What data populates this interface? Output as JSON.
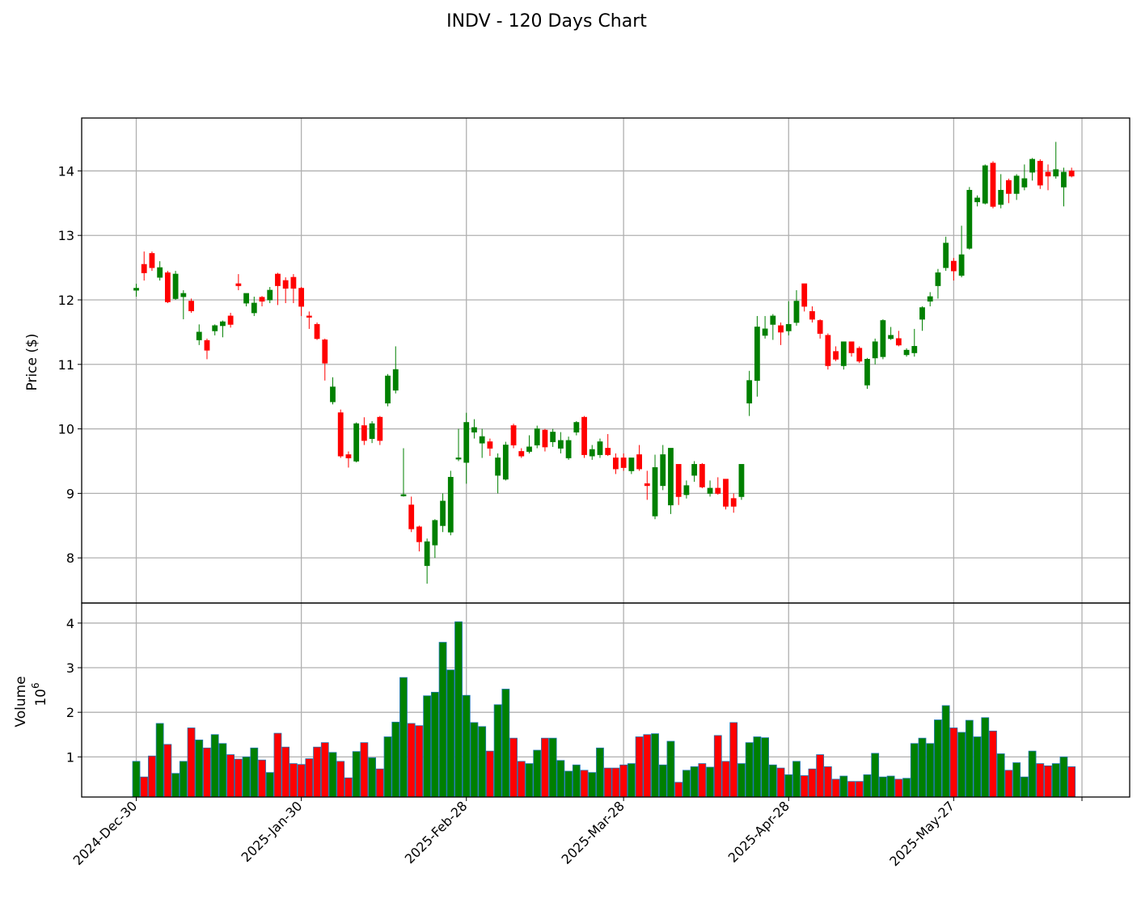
{
  "title": "INDV - 120 Days Chart",
  "colors": {
    "up": "#008000",
    "down": "#ff0000",
    "volume_edge": "#1f77b4",
    "grid": "#b0b0b0",
    "axes": "#000000"
  },
  "chart_data": [
    {
      "type": "candlestick",
      "ylabel": "Price ($)",
      "ylim": [
        7.3,
        14.82
      ],
      "yticks": [
        8,
        9,
        10,
        11,
        12,
        13,
        14
      ],
      "grid": true,
      "xtick_labels": [
        "2024-Dec-30",
        "2025-Jan-30",
        "2025-Feb-28",
        "2025-Mar-28",
        "2025-Apr-28",
        "2025-May-27"
      ],
      "xtick_indices": [
        0,
        21,
        42,
        62,
        83,
        104
      ],
      "ohlc": [
        [
          12.15,
          12.25,
          12.05,
          12.18
        ],
        [
          12.55,
          12.75,
          12.3,
          12.42
        ],
        [
          12.72,
          12.75,
          12.45,
          12.5
        ],
        [
          12.35,
          12.6,
          12.3,
          12.5
        ],
        [
          12.42,
          12.45,
          11.95,
          11.97
        ],
        [
          12.02,
          12.45,
          12.0,
          12.4
        ],
        [
          12.05,
          12.15,
          11.7,
          12.1
        ],
        [
          11.98,
          12.02,
          11.8,
          11.83
        ],
        [
          11.38,
          11.62,
          11.3,
          11.5
        ],
        [
          11.37,
          11.4,
          11.08,
          11.22
        ],
        [
          11.52,
          11.62,
          11.45,
          11.6
        ],
        [
          11.6,
          11.68,
          11.42,
          11.66
        ],
        [
          11.75,
          11.8,
          11.57,
          11.62
        ],
        [
          12.25,
          12.4,
          12.15,
          12.22
        ],
        [
          11.95,
          12.08,
          11.9,
          12.1
        ],
        [
          11.8,
          12.05,
          11.75,
          11.95
        ],
        [
          12.04,
          12.06,
          11.9,
          11.98
        ],
        [
          12.0,
          12.2,
          11.95,
          12.15
        ],
        [
          12.4,
          12.42,
          11.92,
          12.22
        ],
        [
          12.3,
          12.35,
          11.95,
          12.18
        ],
        [
          12.35,
          12.4,
          11.95,
          12.18
        ],
        [
          12.18,
          12.2,
          11.75,
          11.9
        ],
        [
          11.75,
          11.82,
          11.55,
          11.74
        ],
        [
          11.62,
          11.65,
          11.38,
          11.4
        ],
        [
          11.38,
          11.4,
          10.75,
          11.02
        ],
        [
          10.42,
          10.8,
          10.38,
          10.65
        ],
        [
          10.25,
          10.3,
          9.55,
          9.58
        ],
        [
          9.6,
          9.65,
          9.4,
          9.55
        ],
        [
          9.5,
          10.1,
          9.48,
          10.08
        ],
        [
          10.05,
          10.18,
          9.75,
          9.82
        ],
        [
          9.85,
          10.12,
          9.78,
          10.08
        ],
        [
          10.18,
          10.2,
          9.75,
          9.82
        ],
        [
          10.4,
          10.85,
          10.35,
          10.82
        ],
        [
          10.6,
          11.28,
          10.55,
          10.92
        ],
        [
          8.98,
          9.7,
          8.95,
          8.98
        ],
        [
          8.82,
          8.95,
          8.4,
          8.45
        ],
        [
          8.48,
          8.5,
          8.1,
          8.25
        ],
        [
          7.88,
          8.3,
          7.6,
          8.25
        ],
        [
          8.2,
          8.6,
          8.0,
          8.58
        ],
        [
          8.5,
          9.0,
          8.4,
          8.88
        ],
        [
          8.4,
          9.35,
          8.35,
          9.25
        ],
        [
          9.55,
          10.0,
          9.5,
          9.55
        ],
        [
          9.48,
          10.25,
          9.15,
          10.1
        ],
        [
          9.95,
          10.15,
          9.85,
          10.02
        ],
        [
          9.78,
          10.0,
          9.55,
          9.88
        ],
        [
          9.8,
          9.85,
          9.58,
          9.7
        ],
        [
          9.28,
          9.62,
          9.0,
          9.55
        ],
        [
          9.22,
          9.8,
          9.2,
          9.75
        ],
        [
          10.05,
          10.08,
          9.7,
          9.75
        ],
        [
          9.65,
          9.7,
          9.55,
          9.58
        ],
        [
          9.65,
          9.9,
          9.62,
          9.72
        ],
        [
          9.75,
          10.05,
          9.7,
          10.0
        ],
        [
          9.98,
          10.0,
          9.65,
          9.72
        ],
        [
          9.8,
          10.0,
          9.72,
          9.95
        ],
        [
          9.7,
          9.95,
          9.62,
          9.82
        ],
        [
          9.55,
          9.88,
          9.52,
          9.82
        ],
        [
          9.95,
          10.12,
          9.9,
          10.1
        ],
        [
          10.18,
          10.2,
          9.55,
          9.6
        ],
        [
          9.58,
          9.75,
          9.52,
          9.68
        ],
        [
          9.6,
          9.85,
          9.55,
          9.8
        ],
        [
          9.7,
          9.92,
          9.58,
          9.6
        ],
        [
          9.55,
          9.62,
          9.3,
          9.38
        ],
        [
          9.55,
          9.62,
          9.35,
          9.4
        ],
        [
          9.35,
          9.5,
          9.3,
          9.55
        ],
        [
          9.6,
          9.75,
          9.35,
          9.38
        ],
        [
          9.15,
          9.35,
          8.9,
          9.12
        ],
        [
          8.65,
          9.6,
          8.6,
          9.4
        ],
        [
          9.12,
          9.75,
          9.05,
          9.6
        ],
        [
          8.82,
          9.7,
          8.68,
          9.7
        ],
        [
          9.45,
          9.45,
          8.82,
          8.95
        ],
        [
          8.98,
          9.2,
          8.92,
          9.12
        ],
        [
          9.28,
          9.5,
          9.18,
          9.45
        ],
        [
          9.45,
          9.47,
          9.08,
          9.1
        ],
        [
          9.0,
          9.2,
          8.95,
          9.08
        ],
        [
          9.08,
          9.25,
          8.98,
          9.0
        ],
        [
          9.22,
          9.22,
          8.75,
          8.8
        ],
        [
          8.92,
          9.0,
          8.7,
          8.8
        ],
        [
          8.95,
          9.45,
          8.9,
          9.45
        ],
        [
          10.4,
          10.9,
          10.2,
          10.75
        ],
        [
          10.75,
          11.75,
          10.5,
          11.58
        ],
        [
          11.45,
          11.75,
          11.4,
          11.55
        ],
        [
          11.62,
          11.78,
          11.38,
          11.75
        ],
        [
          11.6,
          11.65,
          11.3,
          11.5
        ],
        [
          11.52,
          11.98,
          11.45,
          11.62
        ],
        [
          11.65,
          12.15,
          11.6,
          11.98
        ],
        [
          12.25,
          12.25,
          11.82,
          11.9
        ],
        [
          11.82,
          11.9,
          11.65,
          11.7
        ],
        [
          11.68,
          11.7,
          11.4,
          11.48
        ],
        [
          11.45,
          11.48,
          10.92,
          10.98
        ],
        [
          11.2,
          11.28,
          11.05,
          11.08
        ],
        [
          10.98,
          11.35,
          10.92,
          11.35
        ],
        [
          11.35,
          11.35,
          11.12,
          11.18
        ],
        [
          11.25,
          11.28,
          11.02,
          11.05
        ],
        [
          10.68,
          11.1,
          10.62,
          11.08
        ],
        [
          11.1,
          11.4,
          11.0,
          11.35
        ],
        [
          11.12,
          11.7,
          11.08,
          11.68
        ],
        [
          11.4,
          11.58,
          11.38,
          11.45
        ],
        [
          11.4,
          11.52,
          11.28,
          11.3
        ],
        [
          11.15,
          11.25,
          11.12,
          11.22
        ],
        [
          11.18,
          11.55,
          11.12,
          11.28
        ],
        [
          11.7,
          11.9,
          11.52,
          11.88
        ],
        [
          11.98,
          12.12,
          11.9,
          12.05
        ],
        [
          12.22,
          12.48,
          12.02,
          12.42
        ],
        [
          12.5,
          12.98,
          12.45,
          12.88
        ],
        [
          12.6,
          12.65,
          12.3,
          12.45
        ],
        [
          12.38,
          13.15,
          12.35,
          12.7
        ],
        [
          12.8,
          13.75,
          12.78,
          13.7
        ],
        [
          13.52,
          13.62,
          13.45,
          13.58
        ],
        [
          13.5,
          14.1,
          13.48,
          14.08
        ],
        [
          14.12,
          14.15,
          13.42,
          13.45
        ],
        [
          13.48,
          13.95,
          13.42,
          13.7
        ],
        [
          13.85,
          13.88,
          13.5,
          13.65
        ],
        [
          13.65,
          13.95,
          13.55,
          13.92
        ],
        [
          13.75,
          14.1,
          13.7,
          13.88
        ],
        [
          13.98,
          14.2,
          13.85,
          14.18
        ],
        [
          14.15,
          14.18,
          13.72,
          13.78
        ],
        [
          13.98,
          14.1,
          13.7,
          13.92
        ],
        [
          13.92,
          14.45,
          13.88,
          14.02
        ],
        [
          13.75,
          14.05,
          13.45,
          13.98
        ],
        [
          14.0,
          14.05,
          13.9,
          13.92
        ]
      ]
    },
    {
      "type": "bar",
      "ylabel": "Volume",
      "multiplier_label": "10",
      "multiplier_exponent": "6",
      "ylim": [
        0.1,
        4.45
      ],
      "yticks": [
        1,
        2,
        3,
        4
      ],
      "grid": true,
      "values": [
        0.9,
        0.55,
        1.02,
        1.75,
        1.28,
        0.63,
        0.9,
        1.65,
        1.38,
        1.2,
        1.5,
        1.3,
        1.05,
        0.95,
        1.0,
        1.2,
        0.93,
        0.65,
        1.53,
        1.22,
        0.85,
        0.83,
        0.96,
        1.22,
        1.32,
        1.1,
        0.9,
        0.53,
        1.12,
        1.32,
        0.98,
        0.73,
        1.45,
        1.78,
        2.78,
        1.75,
        1.7,
        2.37,
        2.45,
        3.57,
        2.95,
        4.03,
        2.38,
        1.77,
        1.68,
        1.13,
        2.17,
        2.52,
        1.42,
        0.9,
        0.85,
        1.15,
        1.42,
        1.42,
        0.92,
        0.68,
        0.82,
        0.7,
        0.65,
        1.2,
        0.75,
        0.75,
        0.82,
        0.85,
        1.45,
        1.5,
        1.52,
        0.82,
        1.35,
        0.43,
        0.7,
        0.78,
        0.85,
        0.77,
        1.48,
        0.9,
        1.77,
        0.85,
        1.32,
        1.45,
        1.43,
        0.82,
        0.75,
        0.6,
        0.9,
        0.58,
        0.73,
        1.05,
        0.78,
        0.5,
        0.57,
        0.45,
        0.45,
        0.6,
        1.08,
        0.55,
        0.57,
        0.5,
        0.52,
        1.3,
        1.42,
        1.3,
        1.83,
        2.15,
        1.65,
        1.55,
        1.82,
        1.45,
        1.88,
        1.58,
        1.07,
        0.7,
        0.87,
        0.55,
        1.13,
        0.85,
        0.8,
        0.85,
        1.0,
        0.78
      ]
    }
  ]
}
